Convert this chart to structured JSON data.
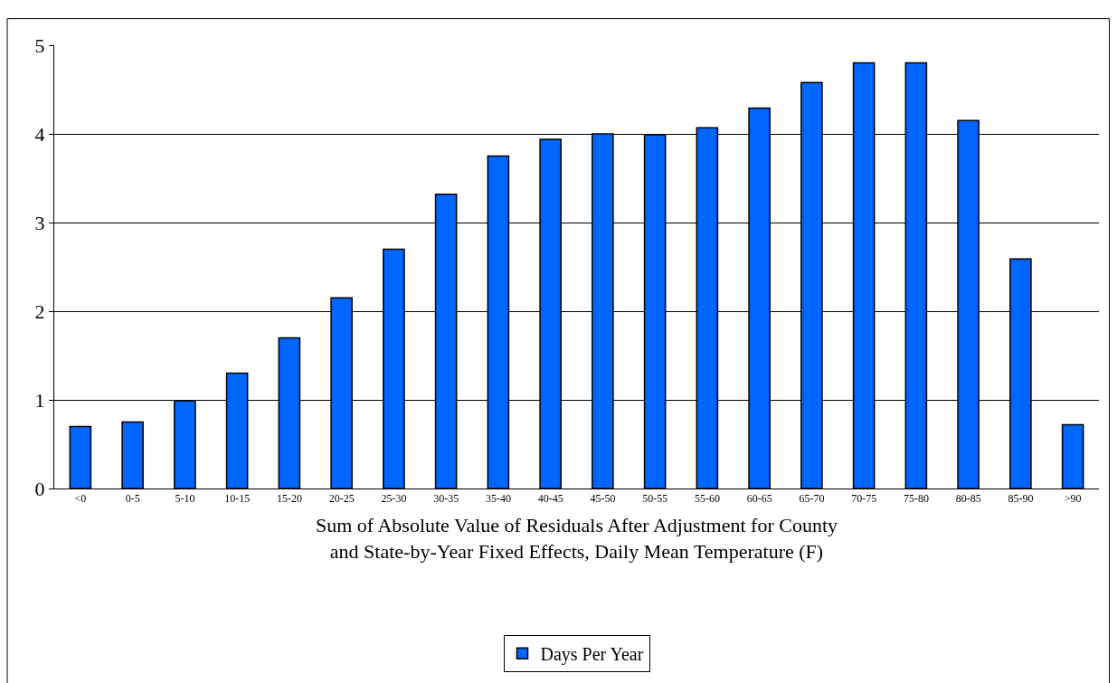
{
  "chart_data": {
    "type": "bar",
    "xlabel": "Sum of Absolute Value of Residuals After Adjustment for County\nand State-by-Year Fixed Effects, Daily Mean Temperature (F)",
    "categories": [
      "<0",
      "0-5",
      "5-10",
      "10-15",
      "15-20",
      "20-25",
      "25-30",
      "30-35",
      "35-40",
      "40-45",
      "45-50",
      "50-55",
      "55-60",
      "60-65",
      "65-70",
      "70-75",
      "75-80",
      "80-85",
      "85-90",
      ">90"
    ],
    "series": [
      {
        "name": "Days Per Year",
        "color": "#0066ff",
        "values": [
          0.7,
          0.75,
          0.99,
          1.3,
          1.7,
          2.15,
          2.7,
          3.32,
          3.75,
          3.94,
          4.0,
          3.99,
          4.07,
          4.29,
          4.58,
          4.8,
          4.8,
          4.15,
          2.59,
          0.72
        ]
      }
    ],
    "ylim": [
      0,
      5
    ],
    "yticks": [
      0,
      1,
      2,
      3,
      4,
      5
    ],
    "grid": "y",
    "legend": "bottom"
  }
}
